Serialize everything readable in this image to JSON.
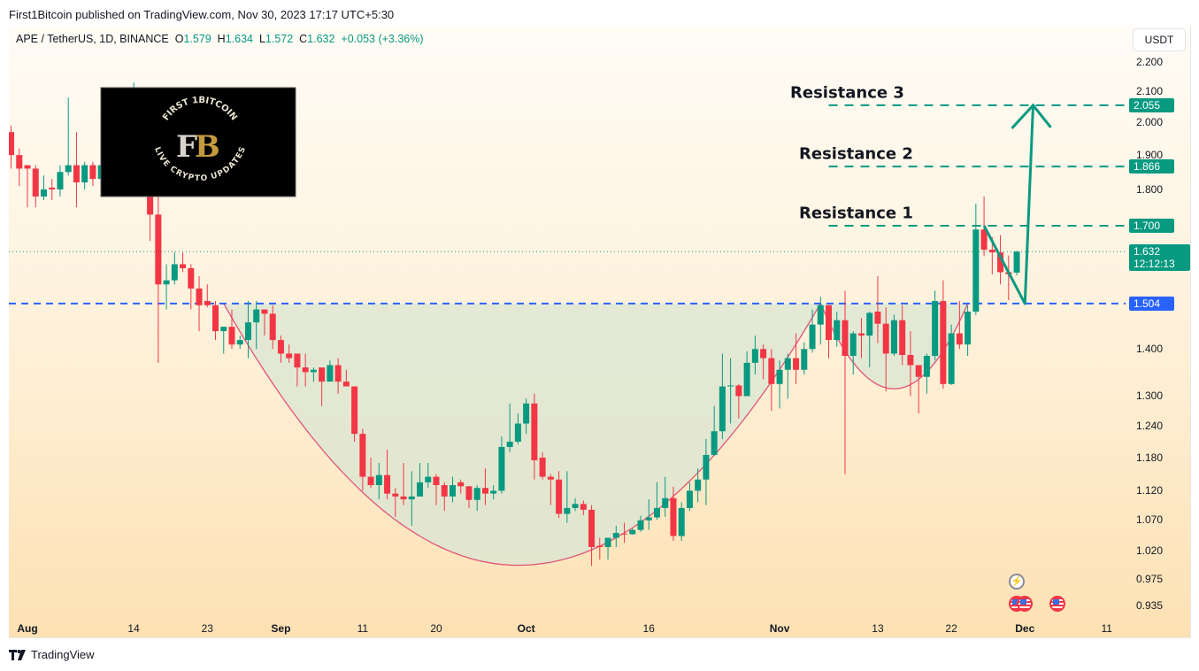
{
  "published": "First1Bitcoin published on TradingView.com, Nov 30, 2023 17:17 UTC+5:30",
  "legend": {
    "symbol": "APE / TetherUS, 1D, BINANCE",
    "o_label": "O",
    "o": "1.579",
    "h_label": "H",
    "h": "1.634",
    "l_label": "L",
    "l": "1.572",
    "c_label": "C",
    "c": "1.632",
    "change": "+0.053 (+3.36%)"
  },
  "currency_button": "USDT",
  "footer_brand": "TradingView",
  "logo": {
    "monogram": "F1B",
    "top_text": "FIRST 1BITCOIN",
    "bottom_text": "LIVE CRYPTO UPDATES"
  },
  "colors": {
    "up": "#089981",
    "down": "#f23645",
    "support": "#2962ff",
    "resistance": "#089981",
    "cup": "#e0557a",
    "cup_fill": "#d9e6d3"
  },
  "chart_data": {
    "type": "candlestick",
    "y_scale": "log",
    "ylim": [
      0.92,
      2.24
    ],
    "xlim": [
      "2023-07-29",
      "2023-12-12"
    ],
    "grid": false,
    "y_ticks": [
      "2.200",
      "2.100",
      "2.000",
      "1.900",
      "1.800",
      "1.400",
      "1.300",
      "1.240",
      "1.180",
      "1.120",
      "1.070",
      "1.020",
      "0.975",
      "0.935"
    ],
    "x_ticks": [
      {
        "date": "2023-08-01",
        "label": "Aug",
        "bold": true
      },
      {
        "date": "2023-08-14",
        "label": "14"
      },
      {
        "date": "2023-08-23",
        "label": "23"
      },
      {
        "date": "2023-09-01",
        "label": "Sep",
        "bold": true
      },
      {
        "date": "2023-09-11",
        "label": "11"
      },
      {
        "date": "2023-09-20",
        "label": "20"
      },
      {
        "date": "2023-10-01",
        "label": "Oct",
        "bold": true
      },
      {
        "date": "2023-10-16",
        "label": "16"
      },
      {
        "date": "2023-11-01",
        "label": "Nov",
        "bold": true
      },
      {
        "date": "2023-11-13",
        "label": "13"
      },
      {
        "date": "2023-11-22",
        "label": "22"
      },
      {
        "date": "2023-12-01",
        "label": "Dec",
        "bold": true
      },
      {
        "date": "2023-12-11",
        "label": "11"
      }
    ],
    "fields": [
      "date",
      "open",
      "high",
      "low",
      "close"
    ],
    "candles": [
      [
        "2023-07-30",
        1.97,
        1.99,
        1.86,
        1.9
      ],
      [
        "2023-07-31",
        1.9,
        1.92,
        1.81,
        1.86
      ],
      [
        "2023-08-01",
        1.87,
        1.87,
        1.75,
        1.86
      ],
      [
        "2023-08-02",
        1.86,
        1.87,
        1.75,
        1.78
      ],
      [
        "2023-08-03",
        1.78,
        1.84,
        1.77,
        1.8
      ],
      [
        "2023-08-04",
        1.805,
        1.83,
        1.77,
        1.8
      ],
      [
        "2023-08-05",
        1.8,
        1.87,
        1.78,
        1.85
      ],
      [
        "2023-08-06",
        1.85,
        2.08,
        1.84,
        1.87
      ],
      [
        "2023-08-07",
        1.87,
        1.97,
        1.75,
        1.82
      ],
      [
        "2023-08-08",
        1.82,
        1.88,
        1.8,
        1.87
      ],
      [
        "2023-08-09",
        1.87,
        1.88,
        1.81,
        1.83
      ],
      [
        "2023-08-10",
        1.83,
        1.89,
        1.82,
        1.87
      ],
      [
        "2023-08-11",
        1.87,
        1.91,
        1.83,
        1.9
      ],
      [
        "2023-08-12",
        1.9,
        2.05,
        1.9,
        2.01
      ],
      [
        "2023-08-13",
        2.01,
        2.07,
        1.97,
        1.995
      ],
      [
        "2023-08-14",
        1.995,
        2.13,
        1.995,
        2.06
      ],
      [
        "2023-08-15",
        2.06,
        2.09,
        1.78,
        1.85
      ],
      [
        "2023-08-16",
        1.85,
        1.85,
        1.66,
        1.73
      ],
      [
        "2023-08-17",
        1.73,
        1.84,
        1.37,
        1.55
      ],
      [
        "2023-08-18",
        1.55,
        1.6,
        1.49,
        1.56
      ],
      [
        "2023-08-19",
        1.56,
        1.63,
        1.55,
        1.6
      ],
      [
        "2023-08-20",
        1.6,
        1.63,
        1.58,
        1.59
      ],
      [
        "2023-08-21",
        1.59,
        1.6,
        1.49,
        1.54
      ],
      [
        "2023-08-22",
        1.54,
        1.57,
        1.44,
        1.5
      ],
      [
        "2023-08-23",
        1.51,
        1.55,
        1.495,
        1.5
      ],
      [
        "2023-08-24",
        1.5,
        1.51,
        1.42,
        1.44
      ],
      [
        "2023-08-25",
        1.44,
        1.45,
        1.39,
        1.45
      ],
      [
        "2023-08-26",
        1.45,
        1.49,
        1.4,
        1.41
      ],
      [
        "2023-08-27",
        1.41,
        1.43,
        1.4,
        1.42
      ],
      [
        "2023-08-28",
        1.42,
        1.51,
        1.38,
        1.46
      ],
      [
        "2023-08-29",
        1.46,
        1.51,
        1.4,
        1.49
      ],
      [
        "2023-08-30",
        1.49,
        1.49,
        1.43,
        1.48
      ],
      [
        "2023-08-31",
        1.48,
        1.5,
        1.4,
        1.42
      ],
      [
        "2023-09-01",
        1.42,
        1.43,
        1.37,
        1.39
      ],
      [
        "2023-09-02",
        1.39,
        1.41,
        1.37,
        1.38
      ],
      [
        "2023-09-03",
        1.39,
        1.39,
        1.32,
        1.36
      ],
      [
        "2023-09-04",
        1.36,
        1.39,
        1.32,
        1.35
      ],
      [
        "2023-09-05",
        1.35,
        1.36,
        1.33,
        1.355
      ],
      [
        "2023-09-06",
        1.36,
        1.36,
        1.28,
        1.33
      ],
      [
        "2023-09-07",
        1.33,
        1.375,
        1.33,
        1.365
      ],
      [
        "2023-09-08",
        1.365,
        1.38,
        1.305,
        1.33
      ],
      [
        "2023-09-09",
        1.33,
        1.355,
        1.32,
        1.32
      ],
      [
        "2023-09-10",
        1.32,
        1.32,
        1.21,
        1.225
      ],
      [
        "2023-09-11",
        1.225,
        1.235,
        1.12,
        1.145
      ],
      [
        "2023-09-12",
        1.145,
        1.18,
        1.125,
        1.13
      ],
      [
        "2023-09-13",
        1.13,
        1.17,
        1.105,
        1.148
      ],
      [
        "2023-09-14",
        1.148,
        1.195,
        1.105,
        1.115
      ],
      [
        "2023-09-15",
        1.115,
        1.125,
        1.075,
        1.11
      ],
      [
        "2023-09-16",
        1.11,
        1.17,
        1.095,
        1.105
      ],
      [
        "2023-09-17",
        1.105,
        1.155,
        1.06,
        1.11
      ],
      [
        "2023-09-18",
        1.11,
        1.17,
        1.11,
        1.135
      ],
      [
        "2023-09-19",
        1.135,
        1.17,
        1.125,
        1.145
      ],
      [
        "2023-09-20",
        1.145,
        1.15,
        1.095,
        1.13
      ],
      [
        "2023-09-21",
        1.13,
        1.135,
        1.085,
        1.11
      ],
      [
        "2023-09-22",
        1.11,
        1.145,
        1.1,
        1.13
      ],
      [
        "2023-09-23",
        1.135,
        1.14,
        1.115,
        1.128
      ],
      [
        "2023-09-24",
        1.128,
        1.128,
        1.09,
        1.104
      ],
      [
        "2023-09-25",
        1.104,
        1.13,
        1.085,
        1.125
      ],
      [
        "2023-09-26",
        1.125,
        1.16,
        1.095,
        1.115
      ],
      [
        "2023-09-27",
        1.115,
        1.13,
        1.105,
        1.12
      ],
      [
        "2023-09-28",
        1.12,
        1.22,
        1.115,
        1.2
      ],
      [
        "2023-09-29",
        1.2,
        1.285,
        1.19,
        1.21
      ],
      [
        "2023-09-30",
        1.21,
        1.265,
        1.205,
        1.245
      ],
      [
        "2023-10-01",
        1.245,
        1.295,
        1.225,
        1.285
      ],
      [
        "2023-10-02",
        1.285,
        1.305,
        1.14,
        1.175
      ],
      [
        "2023-10-03",
        1.18,
        1.19,
        1.14,
        1.145
      ],
      [
        "2023-10-04",
        1.145,
        1.15,
        1.095,
        1.14
      ],
      [
        "2023-10-05",
        1.14,
        1.155,
        1.073,
        1.08
      ],
      [
        "2023-10-06",
        1.08,
        1.155,
        1.065,
        1.09
      ],
      [
        "2023-10-07",
        1.09,
        1.107,
        1.085,
        1.097
      ],
      [
        "2023-10-08",
        1.097,
        1.103,
        1.078,
        1.087
      ],
      [
        "2023-10-09",
        1.087,
        1.095,
        0.995,
        1.025
      ],
      [
        "2023-10-10",
        1.027,
        1.04,
        1.005,
        1.025
      ],
      [
        "2023-10-11",
        1.025,
        1.04,
        1.005,
        1.04
      ],
      [
        "2023-10-12",
        1.04,
        1.06,
        1.025,
        1.048
      ],
      [
        "2023-10-13",
        1.047,
        1.065,
        1.032,
        1.046
      ],
      [
        "2023-10-14",
        1.046,
        1.056,
        1.045,
        1.053
      ],
      [
        "2023-10-15",
        1.053,
        1.077,
        1.05,
        1.069
      ],
      [
        "2023-10-16",
        1.069,
        1.105,
        1.053,
        1.074
      ],
      [
        "2023-10-17",
        1.074,
        1.135,
        1.07,
        1.09
      ],
      [
        "2023-10-18",
        1.09,
        1.145,
        1.075,
        1.107
      ],
      [
        "2023-10-19",
        1.107,
        1.127,
        1.035,
        1.043
      ],
      [
        "2023-10-20",
        1.043,
        1.1,
        1.035,
        1.09
      ],
      [
        "2023-10-21",
        1.09,
        1.135,
        1.085,
        1.12
      ],
      [
        "2023-10-22",
        1.12,
        1.16,
        1.1,
        1.14
      ],
      [
        "2023-10-23",
        1.14,
        1.215,
        1.095,
        1.185
      ],
      [
        "2023-10-24",
        1.185,
        1.28,
        1.183,
        1.23
      ],
      [
        "2023-10-25",
        1.23,
        1.39,
        1.215,
        1.32
      ],
      [
        "2023-10-26",
        1.32,
        1.38,
        1.245,
        1.322
      ],
      [
        "2023-10-27",
        1.322,
        1.325,
        1.255,
        1.3
      ],
      [
        "2023-10-28",
        1.3,
        1.395,
        1.3,
        1.37
      ],
      [
        "2023-10-29",
        1.37,
        1.43,
        1.345,
        1.4
      ],
      [
        "2023-10-30",
        1.4,
        1.41,
        1.335,
        1.38
      ],
      [
        "2023-10-31",
        1.38,
        1.4,
        1.27,
        1.325
      ],
      [
        "2023-11-01",
        1.325,
        1.375,
        1.275,
        1.355
      ],
      [
        "2023-11-02",
        1.355,
        1.39,
        1.295,
        1.38
      ],
      [
        "2023-11-03",
        1.38,
        1.435,
        1.325,
        1.355
      ],
      [
        "2023-11-04",
        1.355,
        1.415,
        1.345,
        1.4
      ],
      [
        "2023-11-05",
        1.4,
        1.49,
        1.392,
        1.455
      ],
      [
        "2023-11-06",
        1.455,
        1.52,
        1.41,
        1.5
      ],
      [
        "2023-11-07",
        1.5,
        1.5,
        1.38,
        1.42
      ],
      [
        "2023-11-08",
        1.42,
        1.485,
        1.405,
        1.465
      ],
      [
        "2023-11-09",
        1.465,
        1.535,
        1.15,
        1.385
      ],
      [
        "2023-11-10",
        1.385,
        1.44,
        1.345,
        1.435
      ],
      [
        "2023-11-11",
        1.435,
        1.47,
        1.38,
        1.43
      ],
      [
        "2023-11-12",
        1.43,
        1.485,
        1.36,
        1.482
      ],
      [
        "2023-11-13",
        1.485,
        1.57,
        1.413,
        1.457
      ],
      [
        "2023-11-14",
        1.457,
        1.495,
        1.31,
        1.39
      ],
      [
        "2023-11-15",
        1.39,
        1.478,
        1.385,
        1.465
      ],
      [
        "2023-11-16",
        1.465,
        1.5,
        1.365,
        1.387
      ],
      [
        "2023-11-17",
        1.387,
        1.44,
        1.3,
        1.365
      ],
      [
        "2023-11-18",
        1.365,
        1.365,
        1.265,
        1.34
      ],
      [
        "2023-11-19",
        1.34,
        1.39,
        1.305,
        1.385
      ],
      [
        "2023-11-20",
        1.385,
        1.535,
        1.375,
        1.51
      ],
      [
        "2023-11-21",
        1.51,
        1.56,
        1.315,
        1.325
      ],
      [
        "2023-11-22",
        1.325,
        1.455,
        1.323,
        1.435
      ],
      [
        "2023-11-23",
        1.435,
        1.51,
        1.4,
        1.41
      ],
      [
        "2023-11-24",
        1.41,
        1.5,
        1.385,
        1.485
      ],
      [
        "2023-11-25",
        1.485,
        1.76,
        1.477,
        1.69
      ],
      [
        "2023-11-26",
        1.69,
        1.78,
        1.62,
        1.637
      ],
      [
        "2023-11-27",
        1.637,
        1.67,
        1.575,
        1.63
      ],
      [
        "2023-11-28",
        1.63,
        1.675,
        1.55,
        1.58
      ],
      [
        "2023-11-29",
        1.58,
        1.622,
        1.512,
        1.575
      ],
      [
        "2023-11-30",
        1.579,
        1.634,
        1.572,
        1.632
      ]
    ],
    "last_price": {
      "value": "1.632",
      "countdown": "12:12:13"
    },
    "support": {
      "value": "1.504"
    },
    "resistances": [
      {
        "label": "Resistance 1",
        "value": "1.700"
      },
      {
        "label": "Resistance 2",
        "value": "1.866"
      },
      {
        "label": "Resistance 3",
        "value": "2.055"
      }
    ],
    "resistance_start": "2023-11-07",
    "cups": [
      {
        "start": "2023-08-25",
        "bottom": "2023-09-30",
        "end": "2023-11-06",
        "rim": 1.504,
        "low": 0.996
      },
      {
        "start": "2023-11-06",
        "bottom": "2023-11-15",
        "end": "2023-11-24",
        "rim": 1.504,
        "low": 1.315
      }
    ],
    "projection": [
      [
        "2023-11-26",
        1.7
      ],
      [
        "2023-12-01",
        1.504
      ],
      [
        "2023-12-02",
        2.055
      ]
    ]
  },
  "events": [
    {
      "date": "2023-11-30",
      "icon": "lightning-icon",
      "row": 0
    },
    {
      "date": "2023-11-30",
      "icon": "us-flag-icon",
      "row": 1
    },
    {
      "date": "2023-12-01",
      "icon": "us-flag-icon",
      "row": 1
    },
    {
      "date": "2023-12-05",
      "icon": "us-flag-icon",
      "row": 1
    }
  ]
}
